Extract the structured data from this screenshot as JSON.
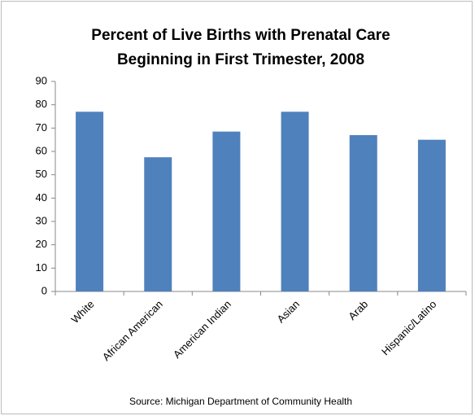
{
  "chart_data": {
    "type": "bar",
    "title": [
      "Percent of Live Births with Prenatal Care",
      "Beginning in First Trimester, 2008"
    ],
    "categories": [
      "White",
      "African American",
      "American Indian",
      "Asian",
      "Arab",
      "Hispanic/Latino"
    ],
    "values": [
      77,
      57.5,
      68.5,
      77,
      67,
      65
    ],
    "color": "#4f81bd",
    "ylim": [
      0,
      90
    ],
    "yticks": [
      0,
      10,
      20,
      30,
      40,
      50,
      60,
      70,
      80,
      90
    ],
    "grid": false,
    "source": "Source: Michigan Department of Community Health"
  }
}
